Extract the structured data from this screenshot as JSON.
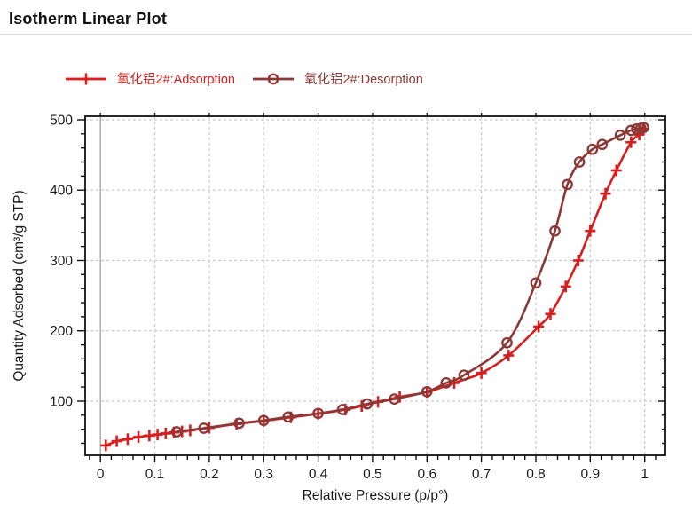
{
  "page": {
    "title": "Isotherm Linear Plot"
  },
  "legend": {
    "items": [
      {
        "label": "氧化铝2#:Adsorption",
        "color": "#d81e1e",
        "marker": "plus"
      },
      {
        "label": "氧化铝2#:Desorption",
        "color": "#8c3836",
        "marker": "circle"
      }
    ]
  },
  "chart_data": {
    "type": "line",
    "title": "Isotherm Linear Plot",
    "xlabel": "Relative Pressure (p/p°)",
    "ylabel": "Quantity Adsorbed (cm³/g STP)",
    "xlim": [
      -0.028,
      1.038
    ],
    "ylim": [
      23,
      505
    ],
    "x_ticks": [
      0,
      0.1,
      0.2,
      0.3,
      0.4,
      0.5,
      0.6,
      0.7,
      0.8,
      0.9,
      1
    ],
    "x_minor_step": 0.02,
    "y_ticks": [
      100,
      200,
      300,
      400,
      500
    ],
    "y_minor_step": 20,
    "grid": "dashed",
    "grid_color": "#c9c9c9",
    "zero_line_color": "#b5b5b5",
    "frame_color": "#111111",
    "legend_position": "top",
    "series": [
      {
        "name": "氧化铝2#:Adsorption",
        "color": "#d81e1e",
        "marker": "plus",
        "points": [
          [
            0.01,
            37
          ],
          [
            0.03,
            43
          ],
          [
            0.05,
            46
          ],
          [
            0.07,
            49
          ],
          [
            0.09,
            51
          ],
          [
            0.105,
            52.5
          ],
          [
            0.12,
            54
          ],
          [
            0.135,
            55.5
          ],
          [
            0.15,
            57
          ],
          [
            0.165,
            58.5
          ],
          [
            0.2,
            62
          ],
          [
            0.25,
            67.5
          ],
          [
            0.3,
            72
          ],
          [
            0.35,
            77
          ],
          [
            0.4,
            82
          ],
          [
            0.45,
            88
          ],
          [
            0.48,
            93
          ],
          [
            0.51,
            99
          ],
          [
            0.55,
            106
          ],
          [
            0.6,
            113
          ],
          [
            0.65,
            126
          ],
          [
            0.7,
            140
          ],
          [
            0.75,
            165
          ],
          [
            0.805,
            206
          ],
          [
            0.827,
            224
          ],
          [
            0.855,
            263
          ],
          [
            0.878,
            300
          ],
          [
            0.9,
            342
          ],
          [
            0.928,
            395
          ],
          [
            0.948,
            428
          ],
          [
            0.975,
            468
          ],
          [
            0.99,
            479
          ],
          [
            0.997,
            487
          ]
        ]
      },
      {
        "name": "氧化铝2#:Desorption",
        "color": "#8c3836",
        "marker": "circle",
        "points": [
          [
            0.14,
            56.5
          ],
          [
            0.19,
            61.5
          ],
          [
            0.255,
            68.5
          ],
          [
            0.3,
            72.5
          ],
          [
            0.345,
            77.5
          ],
          [
            0.4,
            82.5
          ],
          [
            0.445,
            88
          ],
          [
            0.49,
            96
          ],
          [
            0.54,
            103
          ],
          [
            0.6,
            113.5
          ],
          [
            0.635,
            126
          ],
          [
            0.668,
            137
          ],
          [
            0.747,
            183
          ],
          [
            0.8,
            268
          ],
          [
            0.835,
            342
          ],
          [
            0.858,
            408
          ],
          [
            0.88,
            440
          ],
          [
            0.904,
            458
          ],
          [
            0.922,
            465
          ],
          [
            0.955,
            478
          ],
          [
            0.975,
            485
          ],
          [
            0.985,
            487
          ],
          [
            0.993,
            488
          ],
          [
            0.998,
            489
          ]
        ]
      }
    ]
  }
}
